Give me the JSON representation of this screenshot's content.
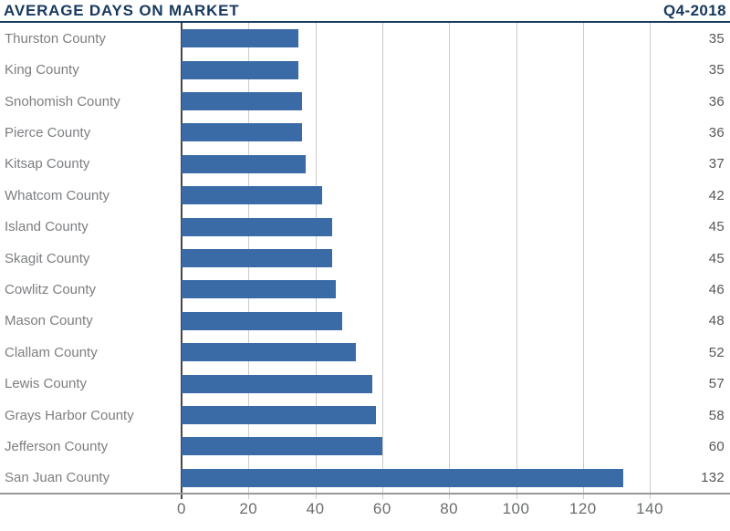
{
  "header": {
    "title": "AVERAGE DAYS ON MARKET",
    "period": "Q4-2018"
  },
  "colors": {
    "navy": "#17395e",
    "bar": "#3a6ba6",
    "county_label": "#7c7e81",
    "value_label": "#545659",
    "gridline": "#cccccc",
    "zero_line": "#474747",
    "axis_line": "#97999b",
    "tick_label": "#6a6c6e"
  },
  "chart_data": {
    "type": "bar",
    "orientation": "horizontal",
    "title": "AVERAGE DAYS ON MARKET",
    "subtitle": "Q4-2018",
    "categories": [
      "Thurston County",
      "King County",
      "Snohomish County",
      "Pierce County",
      "Kitsap County",
      "Whatcom County",
      "Island County",
      "Skagit County",
      "Cowlitz County",
      "Mason County",
      "Clallam County",
      "Lewis County",
      "Grays Harbor County",
      "Jefferson County",
      "San Juan County"
    ],
    "values": [
      35,
      35,
      36,
      36,
      37,
      42,
      45,
      45,
      46,
      48,
      52,
      57,
      58,
      60,
      132
    ],
    "xlabel": "",
    "ylabel": "",
    "xlim": [
      0,
      147.5
    ],
    "x_ticks": [
      0,
      20,
      40,
      60,
      80,
      100,
      120,
      140
    ],
    "grid": true,
    "legend": false,
    "value_labels_position": "right"
  }
}
